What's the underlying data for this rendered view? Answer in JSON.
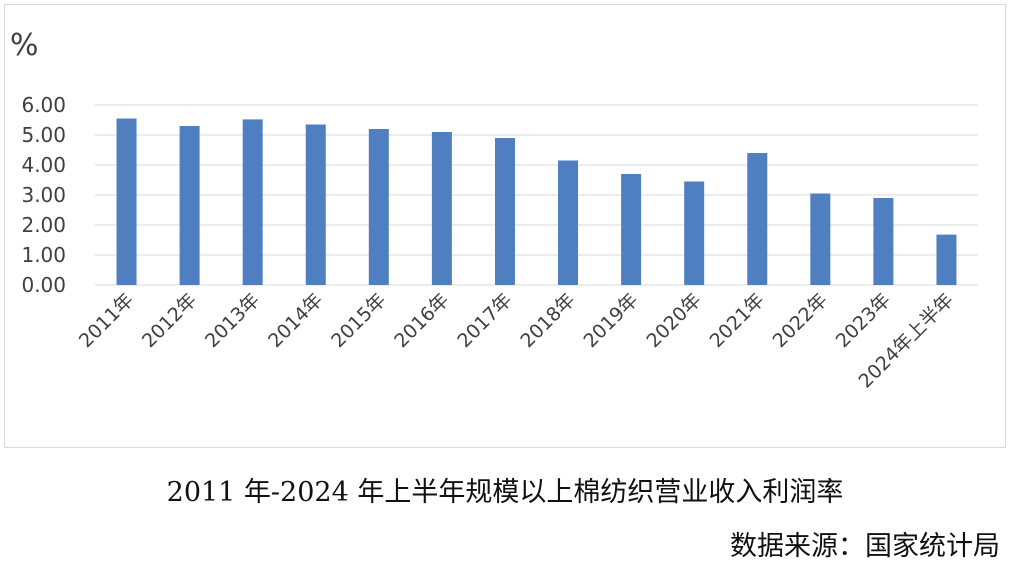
{
  "chart_data": {
    "type": "bar",
    "unit_label": "%",
    "categories": [
      "2011年",
      "2012年",
      "2013年",
      "2014年",
      "2015年",
      "2016年",
      "2017年",
      "2018年",
      "2019年",
      "2020年",
      "2021年",
      "2022年",
      "2023年",
      "2024年上半年"
    ],
    "values": [
      5.55,
      5.3,
      5.52,
      5.35,
      5.2,
      5.1,
      4.9,
      4.15,
      3.7,
      3.45,
      4.4,
      3.05,
      2.9,
      1.68
    ],
    "y_ticks": [
      "0.00",
      "1.00",
      "2.00",
      "3.00",
      "4.00",
      "5.00",
      "6.00"
    ],
    "ylim": [
      0,
      6
    ],
    "grid": true,
    "bar_color": "#4f7fc1",
    "caption": "2011 年-2024 年上半年规模以上棉纺织营业收入利润率",
    "source": "数据来源：国家统计局"
  }
}
